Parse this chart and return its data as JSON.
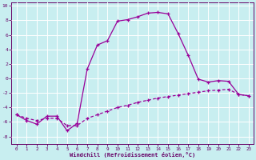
{
  "xlabel": "Windchill (Refroidissement éolien,°C)",
  "background_color": "#c8eef0",
  "grid_color": "#ffffff",
  "line_color": "#990099",
  "xlim": [
    -0.5,
    23.5
  ],
  "ylim": [
    -9.0,
    10.5
  ],
  "xticks": [
    0,
    1,
    2,
    3,
    4,
    5,
    6,
    7,
    8,
    9,
    10,
    11,
    12,
    13,
    14,
    15,
    16,
    17,
    18,
    19,
    20,
    21,
    22,
    23
  ],
  "yticks": [
    -8,
    -6,
    -4,
    -2,
    0,
    2,
    4,
    6,
    8,
    10
  ],
  "hours": [
    0,
    1,
    2,
    3,
    4,
    5,
    6,
    7,
    8,
    9,
    10,
    11,
    12,
    13,
    14,
    15,
    16,
    17,
    18,
    19,
    20,
    21,
    22,
    23
  ],
  "temp": [
    -5.0,
    -5.8,
    -6.3,
    -5.2,
    -5.2,
    -7.2,
    -6.2,
    1.3,
    4.6,
    5.2,
    7.9,
    8.1,
    8.5,
    9.0,
    9.1,
    8.9,
    6.2,
    3.2,
    -0.1,
    -0.5,
    -0.3,
    -0.4,
    -2.2,
    -2.4
  ],
  "windchill": [
    -5.0,
    -5.5,
    -5.8,
    -5.5,
    -5.5,
    -6.5,
    -6.5,
    -5.5,
    -5.0,
    -4.5,
    -4.0,
    -3.7,
    -3.3,
    -3.0,
    -2.7,
    -2.5,
    -2.3,
    -2.1,
    -1.9,
    -1.7,
    -1.6,
    -1.5,
    -2.2,
    -2.4
  ]
}
